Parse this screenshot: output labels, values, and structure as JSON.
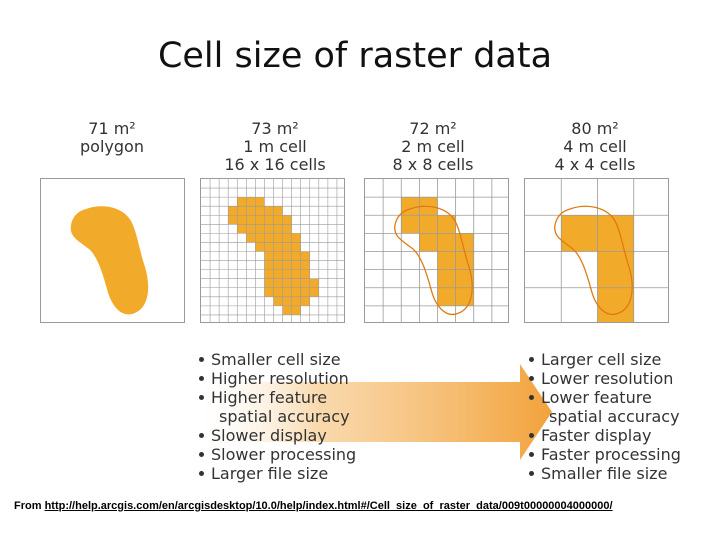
{
  "title": "Cell size of raster data",
  "panels": [
    {
      "line1": "71 m²",
      "line2": "polygon",
      "line3": ""
    },
    {
      "line1": "73 m²",
      "line2": "1 m cell",
      "line3": "16 x 16 cells"
    },
    {
      "line1": "72 m²",
      "line2": "2 m cell",
      "line3": "8 x 8 cells"
    },
    {
      "line1": "80 m²",
      "line2": "4 m cell",
      "line3": "4 x 4 cells"
    }
  ],
  "left_list": [
    "Smaller cell size",
    "Higher resolution",
    "Higher feature",
    "spatial accuracy",
    "Slower display",
    "Slower processing",
    "Larger file size"
  ],
  "right_list": [
    "Larger cell size",
    "Lower resolution",
    "Lower feature",
    "spatial accuracy",
    "Faster display",
    "Faster processing",
    "Smaller file size"
  ],
  "source": {
    "prefix": "From ",
    "url": "http://help.arcgis.com/en/arcgisdesktop/10.0/help/index.html#/Cell_size_of_raster_data/009t00000004000000/"
  },
  "colors": {
    "fill": "#f2aa2a",
    "outline": "#e07a10",
    "grid": "#9a9a9a"
  }
}
